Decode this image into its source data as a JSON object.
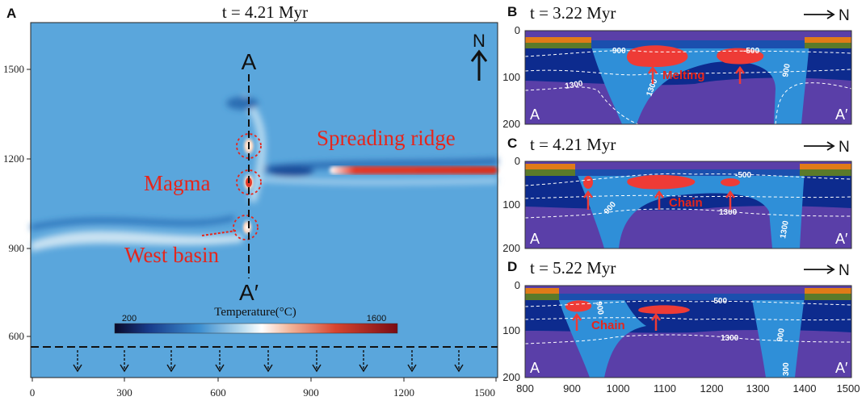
{
  "panel_a": {
    "letter": "A",
    "title": "t = 4.21 Myr",
    "x_ticks": [
      "0",
      "300",
      "600",
      "900",
      "1200",
      "1500"
    ],
    "y_ticks": [
      "1500",
      "1200",
      "900",
      "600"
    ],
    "north": "N",
    "section_top": "A",
    "section_bottom": "A′",
    "annotations": {
      "ridge": "Spreading ridge",
      "magma": "Magma",
      "basin": "West basin"
    },
    "colorbar": {
      "label": "Temperature(°C)",
      "min": "200",
      "max": "1600"
    }
  },
  "panel_b": {
    "letter": "B",
    "title": "t = 3.22 Myr",
    "north": "N",
    "left": "A",
    "right": "A′",
    "label": "Melting",
    "iso": [
      "900",
      "-500",
      "1300",
      "1300",
      "900"
    ]
  },
  "panel_c": {
    "letter": "C",
    "title": "t = 4.21 Myr",
    "north": "N",
    "left": "A",
    "right": "A′",
    "label": "Chain",
    "iso": [
      "-500",
      "900",
      "1300",
      "1300"
    ]
  },
  "panel_d": {
    "letter": "D",
    "title": "t = 5.22 Myr",
    "north": "N",
    "left": "A",
    "right": "A′",
    "label": "Chain",
    "iso": [
      "-500",
      "900",
      "1300",
      "900",
      "300"
    ]
  },
  "sections_axis": {
    "y_ticks": [
      "0",
      "100",
      "200"
    ],
    "x_ticks": [
      "800",
      "900",
      "1000",
      "1100",
      "1200",
      "1300",
      "1400",
      "1500"
    ]
  },
  "colors": {
    "deep_blue": "#0d2b8e",
    "light_blue": "#2f8fd8",
    "purple": "#5a3fa8",
    "melt": "#ee3b36",
    "orange": "#e07b18",
    "green": "#5b7a2a",
    "red_text": "#e5261c"
  }
}
